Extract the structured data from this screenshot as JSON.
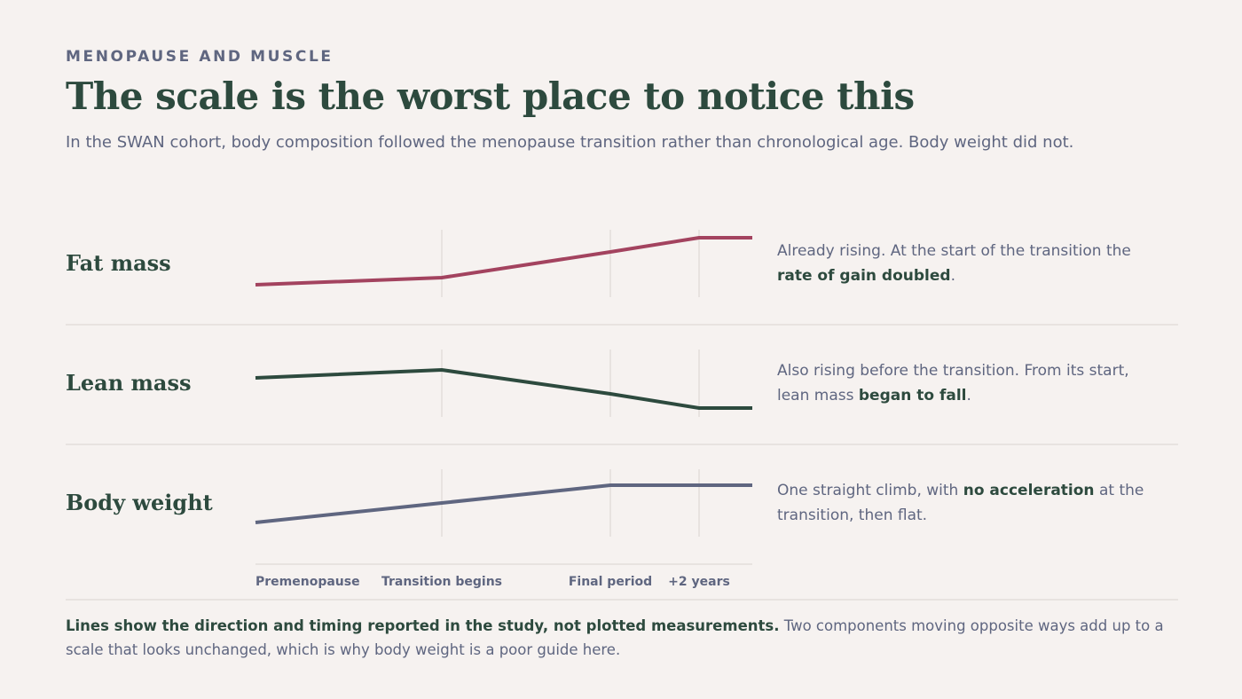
{
  "header": {
    "eyebrow": "MENOPAUSE AND MUSCLE",
    "title": "The scale is the worst place to notice this",
    "subtitle": "In the SWAN cohort, body composition followed the menopause transition rather than chronological age. Body weight did not."
  },
  "rows": [
    {
      "label": "Fat mass",
      "note_before": "Already rising. At the start of the transition the ",
      "note_bold": "rate of gain doubled",
      "note_after": "."
    },
    {
      "label": "Lean mass",
      "note_before": "Also rising before the transition. From its start, lean mass ",
      "note_bold": "began to fall",
      "note_after": "."
    },
    {
      "label": "Body weight",
      "note_before": "One straight climb, with ",
      "note_bold": "no acceleration",
      "note_after": " at the transition, then flat."
    }
  ],
  "stages": [
    "Premenopause",
    "Transition begins",
    "Final period",
    "+2 years"
  ],
  "footnote": {
    "bold": "Lines show the direction and timing reported in the study, not plotted measurements.",
    "text": " Two components moving opposite ways add up to a scale that looks unchanged, which is why body weight is a poor guide here."
  }
}
